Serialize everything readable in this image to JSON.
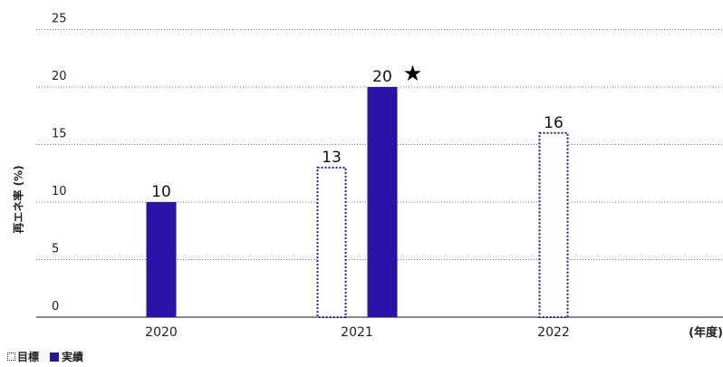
{
  "chart_data": {
    "type": "bar",
    "categories": [
      "2020",
      "2021",
      "2022"
    ],
    "series": [
      {
        "name": "目標",
        "values": [
          null,
          13,
          16
        ],
        "style": "dotted-outline",
        "color": "#2a12a8"
      },
      {
        "name": "実績",
        "values": [
          10,
          20,
          null
        ],
        "style": "solid",
        "color": "#2a12a8"
      }
    ],
    "ylabel": "再エネ率 (%)",
    "xunit": "(年度)",
    "ylim": [
      0,
      25
    ],
    "yticks": [
      0,
      5,
      10,
      15,
      20,
      25
    ],
    "grid": true,
    "grid_style": "dotted",
    "annotations": [
      {
        "category": "2021",
        "series": "実績",
        "text": "★"
      }
    ],
    "legend_position": "bottom-left"
  }
}
